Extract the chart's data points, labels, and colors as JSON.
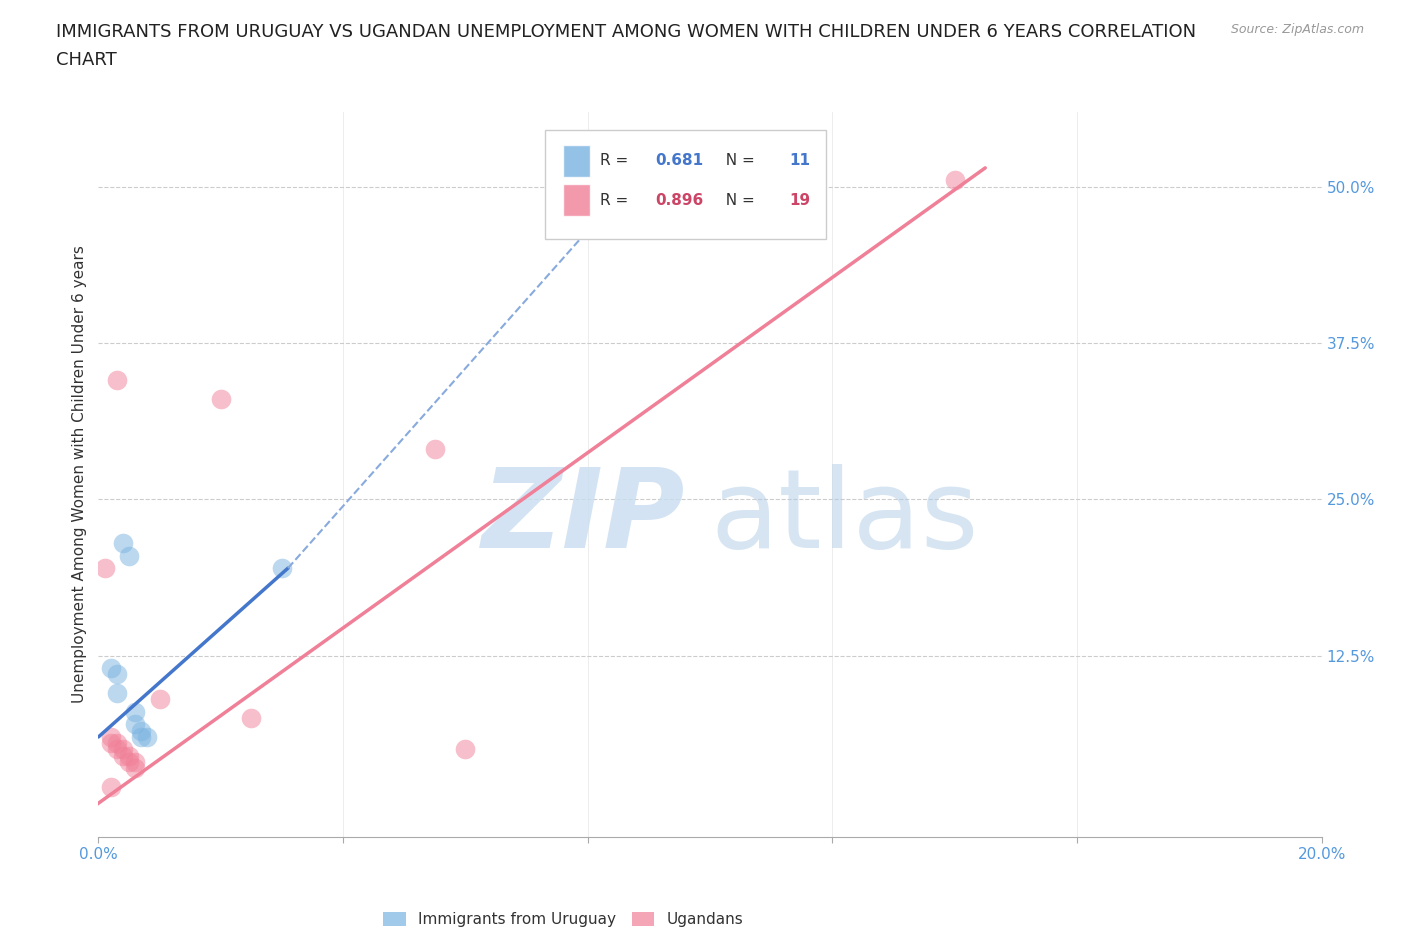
{
  "title_line1": "IMMIGRANTS FROM URUGUAY VS UGANDAN UNEMPLOYMENT AMONG WOMEN WITH CHILDREN UNDER 6 YEARS CORRELATION",
  "title_line2": "CHART",
  "source": "Source: ZipAtlas.com",
  "ylabel": "Unemployment Among Women with Children Under 6 years",
  "xlim": [
    0.0,
    0.2
  ],
  "ylim": [
    -0.02,
    0.56
  ],
  "yticks": [
    0.0,
    0.125,
    0.25,
    0.375,
    0.5
  ],
  "ytick_labels": [
    "",
    "12.5%",
    "25.0%",
    "37.5%",
    "50.0%"
  ],
  "xticks": [
    0.0,
    0.04,
    0.08,
    0.12,
    0.16,
    0.2
  ],
  "xtick_labels": [
    "0.0%",
    "",
    "",
    "",
    "",
    "20.0%"
  ],
  "legend_label_blue": "Immigrants from Uruguay",
  "legend_label_pink": "Ugandans",
  "blue_color": "#7ab3e0",
  "pink_color": "#f08098",
  "blue_scatter": [
    [
      0.002,
      0.115
    ],
    [
      0.003,
      0.11
    ],
    [
      0.003,
      0.095
    ],
    [
      0.004,
      0.215
    ],
    [
      0.005,
      0.205
    ],
    [
      0.006,
      0.08
    ],
    [
      0.006,
      0.07
    ],
    [
      0.007,
      0.065
    ],
    [
      0.007,
      0.06
    ],
    [
      0.008,
      0.06
    ],
    [
      0.03,
      0.195
    ]
  ],
  "pink_scatter": [
    [
      0.001,
      0.195
    ],
    [
      0.002,
      0.06
    ],
    [
      0.002,
      0.055
    ],
    [
      0.003,
      0.055
    ],
    [
      0.003,
      0.05
    ],
    [
      0.004,
      0.05
    ],
    [
      0.004,
      0.045
    ],
    [
      0.005,
      0.045
    ],
    [
      0.005,
      0.04
    ],
    [
      0.006,
      0.04
    ],
    [
      0.006,
      0.035
    ],
    [
      0.01,
      0.09
    ],
    [
      0.02,
      0.33
    ],
    [
      0.025,
      0.075
    ],
    [
      0.055,
      0.29
    ],
    [
      0.06,
      0.05
    ],
    [
      0.002,
      0.02
    ],
    [
      0.14,
      0.505
    ],
    [
      0.003,
      0.345
    ]
  ],
  "blue_line_solid": [
    [
      0.0,
      0.06
    ],
    [
      0.031,
      0.195
    ]
  ],
  "blue_line_dashed": [
    [
      0.031,
      0.195
    ],
    [
      0.09,
      0.52
    ]
  ],
  "pink_line": [
    [
      -0.002,
      0.0
    ],
    [
      0.145,
      0.515
    ]
  ],
  "background_color": "#ffffff",
  "grid_color": "#cccccc",
  "title_fontsize": 13,
  "axis_label_fontsize": 11,
  "tick_fontsize": 11,
  "tick_color": "#5599dd",
  "r_blue": "0.681",
  "n_blue": "11",
  "r_pink": "0.896",
  "n_pink": "19"
}
